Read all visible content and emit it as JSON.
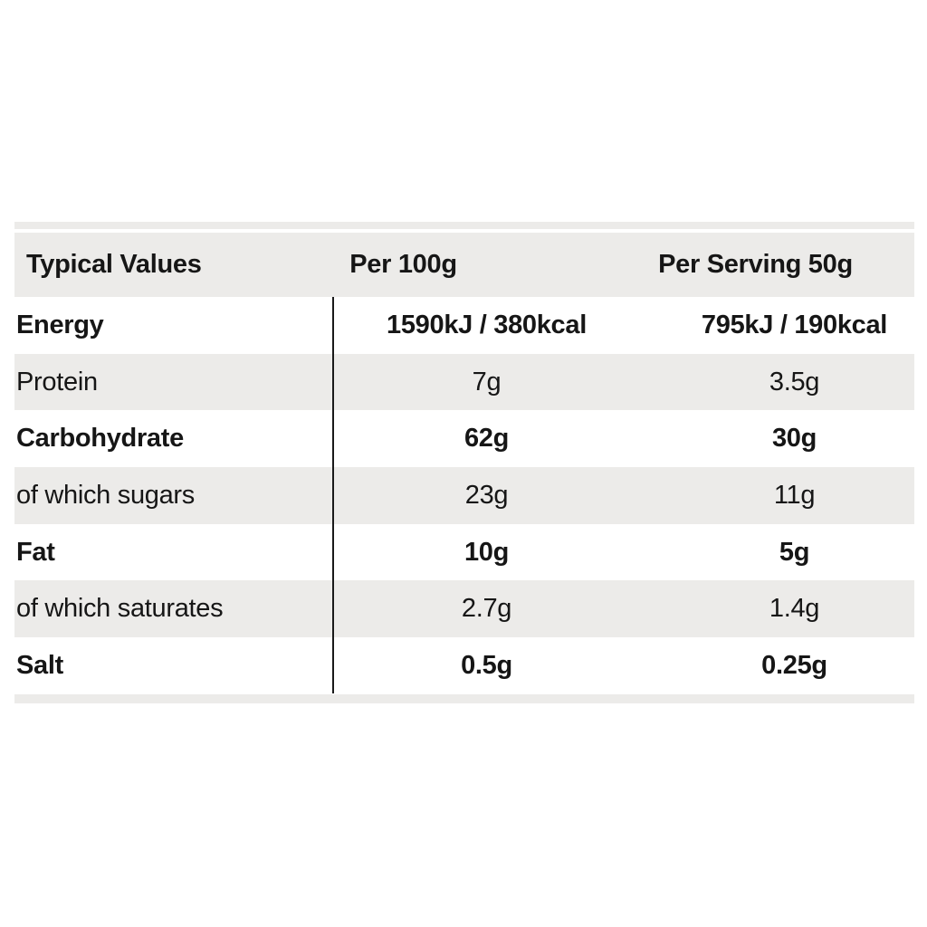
{
  "table": {
    "title_note": "nutrition-information-table",
    "header": {
      "col1": "Typical Values",
      "col2": "Per 100g",
      "col3": "Per Serving 50g"
    },
    "rows": [
      {
        "label": "Energy",
        "per_100g": "1590kJ / 380kcal",
        "per_serving": "795kJ / 190kcal"
      },
      {
        "label": "Protein",
        "per_100g": "7g",
        "per_serving": "3.5g"
      },
      {
        "label": "Carbohydrate",
        "per_100g": "62g",
        "per_serving": "30g"
      },
      {
        "label": "of which sugars",
        "per_100g": "23g",
        "per_serving": "11g"
      },
      {
        "label": "Fat",
        "per_100g": "10g",
        "per_serving": "5g"
      },
      {
        "label": "of which saturates",
        "per_100g": "2.7g",
        "per_serving": "1.4g"
      },
      {
        "label": "Salt",
        "per_100g": "0.5g",
        "per_serving": "0.25g"
      }
    ],
    "colors": {
      "stripe": "#ECEBE9",
      "text": "#161616",
      "divider": "#1a1a1a",
      "background": "#ffffff"
    }
  }
}
